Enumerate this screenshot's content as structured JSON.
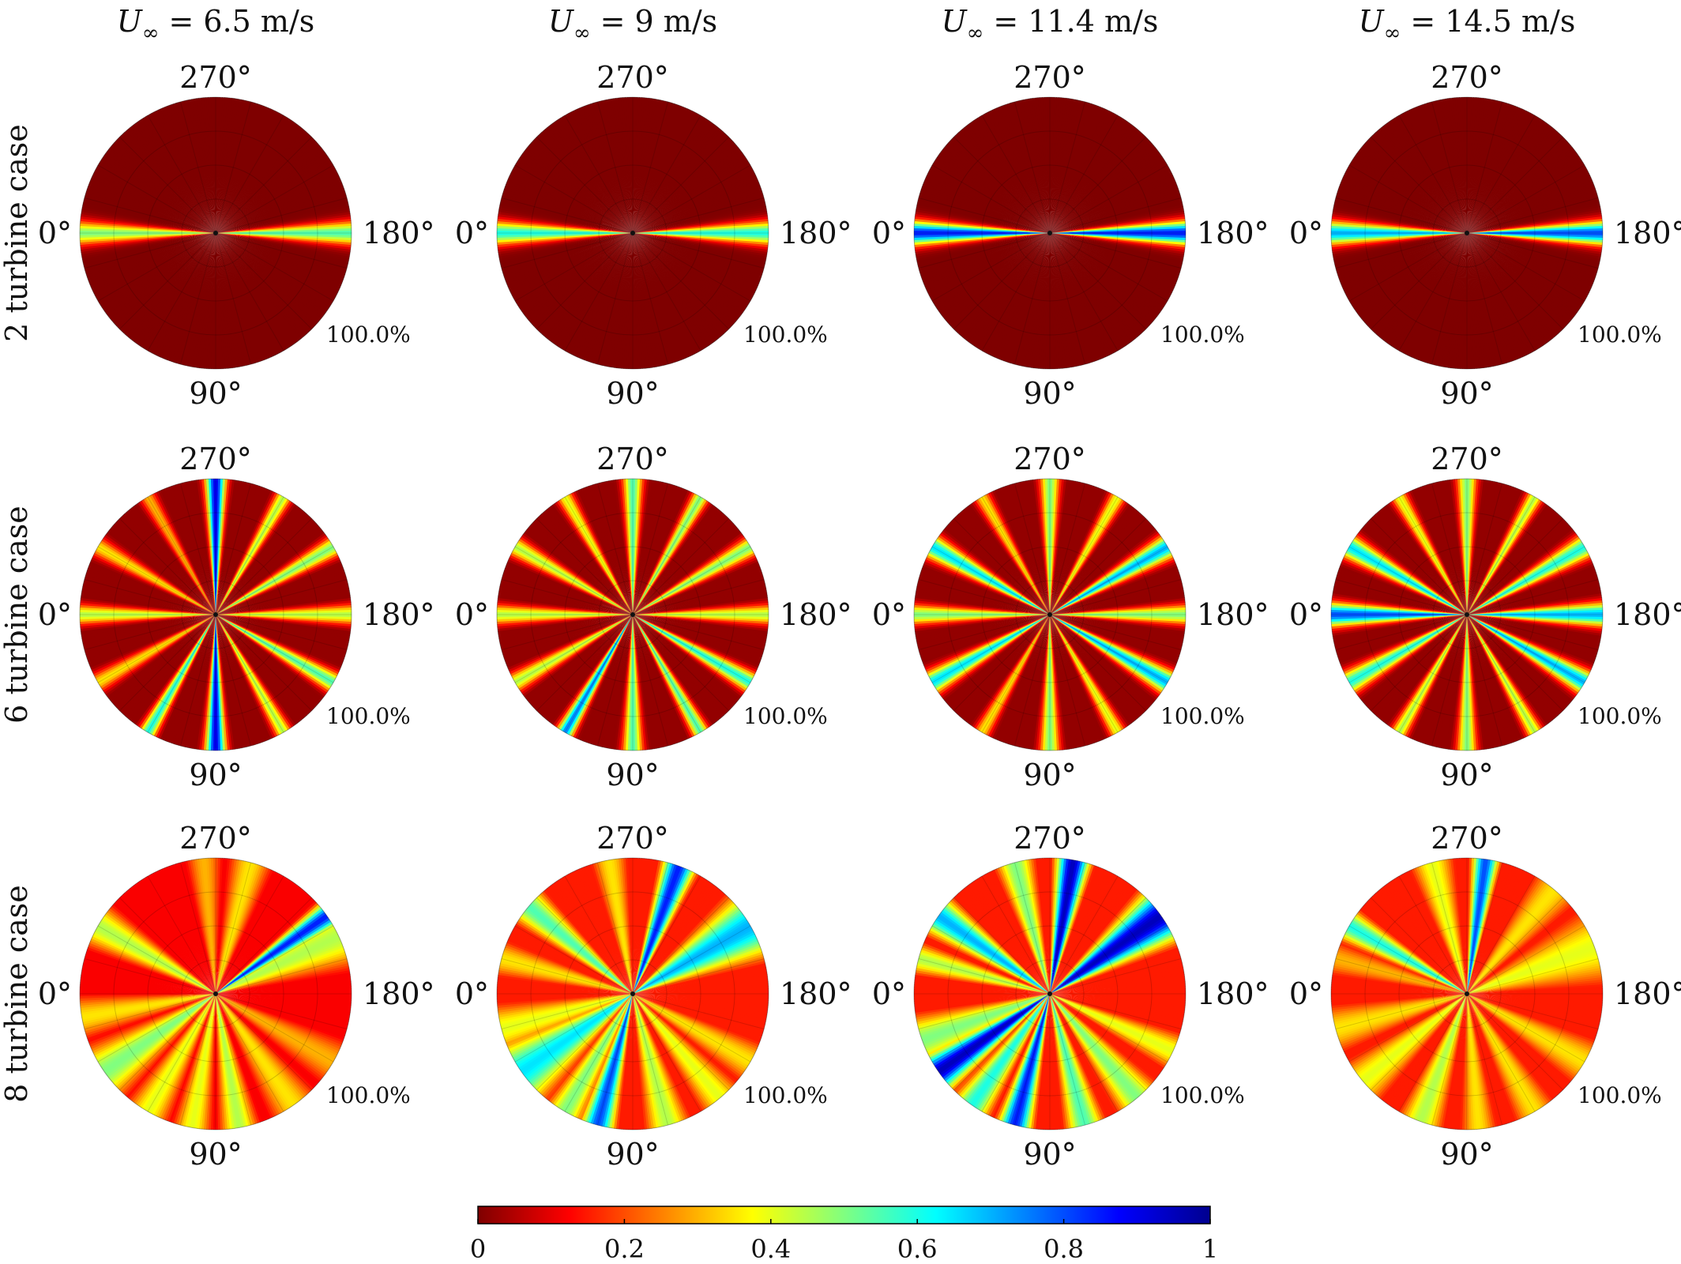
{
  "chart_data": {
    "type": "polar_heatmap",
    "columns": [
      {
        "title_var": "U",
        "title_sub": "∞",
        "title_rest": " = 6.5 m/s"
      },
      {
        "title_var": "U",
        "title_sub": "∞",
        "title_rest": " = 9 m/s"
      },
      {
        "title_var": "U",
        "title_sub": "∞",
        "title_rest": " = 11.4 m/s"
      },
      {
        "title_var": "U",
        "title_sub": "∞",
        "title_rest": " = 14.5 m/s"
      }
    ],
    "rows": [
      {
        "label": "2 turbine case"
      },
      {
        "label": "6 turbine case"
      },
      {
        "label": "8 turbine case"
      }
    ],
    "angle_labels": {
      "top": "270°",
      "right": "180°",
      "bottom": "90°",
      "left": "0°"
    },
    "radial_label": "100.0%",
    "colorbar": {
      "min": 0,
      "max": 1,
      "ticks": [
        "0",
        "0.2",
        "0.4",
        "0.6",
        "0.8",
        "1"
      ],
      "colormap": "jet-reversed",
      "stops": [
        "#7f0000",
        "#ff0000",
        "#ff8000",
        "#ffff00",
        "#80ff80",
        "#00ffff",
        "#0080ff",
        "#0000ff",
        "#00008f"
      ]
    },
    "panels": [
      [
        {
          "background": 0.0,
          "rays": [
            {
              "angle": 0,
              "width": 3.5,
              "peak": 0.5
            },
            {
              "angle": 180,
              "width": 3.5,
              "peak": 0.55
            }
          ]
        },
        {
          "background": 0.0,
          "rays": [
            {
              "angle": 0,
              "width": 3.5,
              "peak": 0.6
            },
            {
              "angle": 180,
              "width": 3.5,
              "peak": 0.6
            }
          ]
        },
        {
          "background": 0.0,
          "rays": [
            {
              "angle": 0,
              "width": 3.5,
              "peak": 0.85
            },
            {
              "angle": 180,
              "width": 3.5,
              "peak": 0.85
            }
          ]
        },
        {
          "background": 0.0,
          "rays": [
            {
              "angle": 0,
              "width": 3.5,
              "peak": 0.7
            },
            {
              "angle": 180,
              "width": 3.5,
              "peak": 0.8
            }
          ]
        }
      ],
      [
        {
          "background": 0.02,
          "rays": [
            {
              "angle": 0,
              "width": 3,
              "peak": 0.45
            },
            {
              "angle": 180,
              "width": 3,
              "peak": 0.45
            },
            {
              "angle": 90,
              "width": 3,
              "peak": 0.9
            },
            {
              "angle": 270,
              "width": 3,
              "peak": 0.9
            },
            {
              "angle": 30,
              "width": 3,
              "peak": 0.35
            },
            {
              "angle": 150,
              "width": 3,
              "peak": 0.55
            },
            {
              "angle": 210,
              "width": 3,
              "peak": 0.5
            },
            {
              "angle": 330,
              "width": 3,
              "peak": 0.35
            },
            {
              "angle": 60,
              "width": 2.5,
              "peak": 0.6
            },
            {
              "angle": 120,
              "width": 2.5,
              "peak": 0.45
            },
            {
              "angle": 240,
              "width": 2.5,
              "peak": 0.45
            },
            {
              "angle": 300,
              "width": 2.5,
              "peak": 0.3
            }
          ]
        },
        {
          "background": 0.02,
          "rays": [
            {
              "angle": 0,
              "width": 3,
              "peak": 0.45
            },
            {
              "angle": 180,
              "width": 3,
              "peak": 0.45
            },
            {
              "angle": 90,
              "width": 3,
              "peak": 0.55
            },
            {
              "angle": 270,
              "width": 3,
              "peak": 0.55
            },
            {
              "angle": 30,
              "width": 3,
              "peak": 0.45
            },
            {
              "angle": 150,
              "width": 3,
              "peak": 0.6
            },
            {
              "angle": 210,
              "width": 3,
              "peak": 0.5
            },
            {
              "angle": 330,
              "width": 3,
              "peak": 0.45
            },
            {
              "angle": 60,
              "width": 2.5,
              "peak": 0.75
            },
            {
              "angle": 120,
              "width": 2.5,
              "peak": 0.55
            },
            {
              "angle": 240,
              "width": 2.5,
              "peak": 0.5
            },
            {
              "angle": 300,
              "width": 2.5,
              "peak": 0.4
            }
          ]
        },
        {
          "background": 0.02,
          "rays": [
            {
              "angle": 0,
              "width": 3,
              "peak": 0.5
            },
            {
              "angle": 180,
              "width": 3,
              "peak": 0.5
            },
            {
              "angle": 90,
              "width": 3,
              "peak": 0.5
            },
            {
              "angle": 270,
              "width": 3,
              "peak": 0.5
            },
            {
              "angle": 30,
              "width": 3.5,
              "peak": 0.65
            },
            {
              "angle": 150,
              "width": 3.5,
              "peak": 0.7
            },
            {
              "angle": 210,
              "width": 3.5,
              "peak": 0.7
            },
            {
              "angle": 330,
              "width": 3.5,
              "peak": 0.65
            },
            {
              "angle": 60,
              "width": 2.5,
              "peak": 0.35
            },
            {
              "angle": 120,
              "width": 2.5,
              "peak": 0.4
            },
            {
              "angle": 240,
              "width": 2.5,
              "peak": 0.4
            },
            {
              "angle": 300,
              "width": 2.5,
              "peak": 0.35
            }
          ]
        },
        {
          "background": 0.02,
          "rays": [
            {
              "angle": 0,
              "width": 3.5,
              "peak": 0.8
            },
            {
              "angle": 180,
              "width": 3.5,
              "peak": 0.7
            },
            {
              "angle": 90,
              "width": 3,
              "peak": 0.5
            },
            {
              "angle": 270,
              "width": 3,
              "peak": 0.5
            },
            {
              "angle": 30,
              "width": 3.5,
              "peak": 0.6
            },
            {
              "angle": 150,
              "width": 3.5,
              "peak": 0.7
            },
            {
              "angle": 210,
              "width": 3.5,
              "peak": 0.6
            },
            {
              "angle": 330,
              "width": 3.5,
              "peak": 0.65
            },
            {
              "angle": 60,
              "width": 2.5,
              "peak": 0.45
            },
            {
              "angle": 120,
              "width": 2.5,
              "peak": 0.45
            },
            {
              "angle": 240,
              "width": 2.5,
              "peak": 0.45
            },
            {
              "angle": 300,
              "width": 2.5,
              "peak": 0.4
            }
          ]
        }
      ],
      [
        {
          "background": 0.12,
          "rays": [
            {
              "angle": 10,
              "width": 7,
              "peak": 0.35
            },
            {
              "angle": 35,
              "width": 9,
              "peak": 0.5
            },
            {
              "angle": 60,
              "width": 7,
              "peak": 0.4
            },
            {
              "angle": 80,
              "width": 6,
              "peak": 0.4
            },
            {
              "angle": 100,
              "width": 6,
              "peak": 0.45
            },
            {
              "angle": 125,
              "width": 8,
              "peak": 0.35
            },
            {
              "angle": 150,
              "width": 8,
              "peak": 0.3
            },
            {
              "angle": 205,
              "width": 10,
              "peak": 0.45
            },
            {
              "angle": 215,
              "width": 4,
              "peak": 0.85
            },
            {
              "angle": 255,
              "width": 7,
              "peak": 0.35
            },
            {
              "angle": 275,
              "width": 6,
              "peak": 0.3
            },
            {
              "angle": 330,
              "width": 7,
              "peak": 0.45
            }
          ]
        },
        {
          "background": 0.15,
          "rays": [
            {
              "angle": 15,
              "width": 8,
              "peak": 0.4
            },
            {
              "angle": 35,
              "width": 10,
              "peak": 0.65
            },
            {
              "angle": 60,
              "width": 6,
              "peak": 0.5
            },
            {
              "angle": 75,
              "width": 5,
              "peak": 0.8
            },
            {
              "angle": 105,
              "width": 7,
              "peak": 0.45
            },
            {
              "angle": 130,
              "width": 7,
              "peak": 0.4
            },
            {
              "angle": 150,
              "width": 7,
              "peak": 0.35
            },
            {
              "angle": 210,
              "width": 10,
              "peak": 0.7
            },
            {
              "angle": 250,
              "width": 5,
              "peak": 0.85
            },
            {
              "angle": 280,
              "width": 6,
              "peak": 0.35
            },
            {
              "angle": 320,
              "width": 6,
              "peak": 0.55
            },
            {
              "angle": 345,
              "width": 6,
              "peak": 0.35
            }
          ]
        },
        {
          "background": 0.15,
          "rays": [
            {
              "angle": 20,
              "width": 8,
              "peak": 0.5
            },
            {
              "angle": 35,
              "width": 6,
              "peak": 0.95
            },
            {
              "angle": 55,
              "width": 6,
              "peak": 0.6
            },
            {
              "angle": 75,
              "width": 5,
              "peak": 0.85
            },
            {
              "angle": 105,
              "width": 6,
              "peak": 0.55
            },
            {
              "angle": 130,
              "width": 7,
              "peak": 0.5
            },
            {
              "angle": 155,
              "width": 6,
              "peak": 0.4
            },
            {
              "angle": 215,
              "width": 8,
              "peak": 0.95
            },
            {
              "angle": 260,
              "width": 5,
              "peak": 0.95
            },
            {
              "angle": 285,
              "width": 6,
              "peak": 0.5
            },
            {
              "angle": 325,
              "width": 6,
              "peak": 0.7
            },
            {
              "angle": 345,
              "width": 5,
              "peak": 0.45
            }
          ]
        },
        {
          "background": 0.15,
          "rays": [
            {
              "angle": 15,
              "width": 8,
              "peak": 0.35
            },
            {
              "angle": 40,
              "width": 8,
              "peak": 0.4
            },
            {
              "angle": 70,
              "width": 7,
              "peak": 0.45
            },
            {
              "angle": 95,
              "width": 6,
              "peak": 0.35
            },
            {
              "angle": 120,
              "width": 7,
              "peak": 0.35
            },
            {
              "angle": 150,
              "width": 8,
              "peak": 0.35
            },
            {
              "angle": 200,
              "width": 12,
              "peak": 0.4
            },
            {
              "angle": 230,
              "width": 8,
              "peak": 0.35
            },
            {
              "angle": 262,
              "width": 4,
              "peak": 0.8
            },
            {
              "angle": 285,
              "width": 7,
              "peak": 0.4
            },
            {
              "angle": 330,
              "width": 5,
              "peak": 0.6
            },
            {
              "angle": 345,
              "width": 6,
              "peak": 0.3
            }
          ]
        }
      ]
    ]
  }
}
